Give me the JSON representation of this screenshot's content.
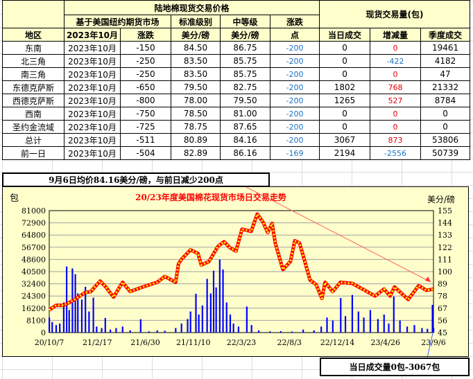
{
  "table": {
    "title": "陆地棉现货交易价格",
    "futures_header": "基于美国纽约期货市场",
    "std_grade": "标准级别",
    "mid_grade": "中等级",
    "change_header": "涨跌",
    "volume_header": "现货交易量(包)",
    "sub": {
      "region": "地区",
      "month": "2023年10月",
      "change": "涨跌",
      "unit1": "美分/磅",
      "unit2": "美分/磅",
      "points": "点",
      "today": "当日成交",
      "delta": "增减量",
      "season": "季度成交"
    },
    "rows": [
      {
        "region": "东南",
        "month": "2023年10月",
        "basis": "-150",
        "std": "84.50",
        "mid": "86.75",
        "chg": "-200",
        "today": "0",
        "delta": "0",
        "season": "19461",
        "delta_color": "red"
      },
      {
        "region": "北三角",
        "month": "2023年10月",
        "basis": "-250",
        "std": "83.50",
        "mid": "85.75",
        "chg": "-200",
        "today": "0",
        "delta": "-422",
        "season": "4182",
        "delta_color": "blue"
      },
      {
        "region": "南三角",
        "month": "2023年10月",
        "basis": "-250",
        "std": "83.50",
        "mid": "85.75",
        "chg": "-200",
        "today": "0",
        "delta": "0",
        "season": "47",
        "delta_color": "red"
      },
      {
        "region": "东德克萨斯",
        "month": "2023年10月",
        "basis": "-650",
        "std": "79.50",
        "mid": "82.75",
        "chg": "-200",
        "today": "1802",
        "delta": "768",
        "season": "21332",
        "delta_color": "red"
      },
      {
        "region": "西德克萨斯",
        "month": "2023年10月",
        "basis": "-800",
        "std": "78.00",
        "mid": "79.50",
        "chg": "-200",
        "today": "1265",
        "delta": "527",
        "season": "8784",
        "delta_color": "red"
      },
      {
        "region": "西南",
        "month": "2023年10月",
        "basis": "-750",
        "std": "78.50",
        "mid": "81.00",
        "chg": "-200",
        "today": "0",
        "delta": "0",
        "season": "0",
        "delta_color": "red"
      },
      {
        "region": "圣约金流域",
        "month": "2023年10月",
        "basis": "-725",
        "std": "78.75",
        "mid": "87.65",
        "chg": "-200",
        "today": "0",
        "delta": "0",
        "season": "0",
        "delta_color": "red"
      },
      {
        "region": "总计",
        "month": "2023年10月",
        "basis": "-511",
        "std": "80.89",
        "mid": "84.16",
        "chg": "-200",
        "today": "3067",
        "delta": "873",
        "season": "53806",
        "delta_color": "red"
      },
      {
        "region": "前一日",
        "month": "2023年10月",
        "basis": "-504",
        "std": "82.89",
        "mid": "86.16",
        "chg": "-169",
        "today": "2194",
        "delta": "-2556",
        "season": "50739",
        "delta_color": "blue"
      }
    ]
  },
  "caption_top": "9月6日均价84.16美分/磅，与前日减少200点",
  "caption_bottom": "当日成交量0包-3067包",
  "colors": {
    "header_bg": "#ffffcc",
    "price_line": "#ff0000",
    "price_dots": "#ffff00",
    "volume_bars": "#0000ff",
    "title": "#ff0000",
    "negative": "#1a6fc4"
  },
  "chart_data": {
    "type": "bar+line",
    "title": "20/23年度美国棉花现货市场日交易走势",
    "ylabel_left": "包",
    "ylabel_right": "美分/磅",
    "ylim_left": [
      0,
      81000
    ],
    "yticks_left": [
      "0",
      "8100",
      "16200",
      "24300",
      "32400",
      "40500",
      "48600",
      "56700",
      "64800",
      "72900",
      "81000"
    ],
    "ylim_right": [
      45,
      155
    ],
    "yticks_right": [
      "45",
      "56",
      "67",
      "78",
      "89",
      "100",
      "111",
      "122",
      "133",
      "144",
      "155"
    ],
    "xlim": [
      "2020-10-07",
      "2023-09-06"
    ],
    "xticks": [
      "20/10/7",
      "21/2/17",
      "21/6/30",
      "21/11/10",
      "22/3/23",
      "22/8/3",
      "22/12/14",
      "23/4/26",
      "23/9/6"
    ],
    "grid": "horizontal",
    "price_series": [
      [
        "2020-10-07",
        65.4
      ],
      [
        "2020-10-26",
        69.6
      ],
      [
        "2020-11-16",
        69.6
      ],
      [
        "2020-12-11",
        73.7
      ],
      [
        "2021-01-14",
        81
      ],
      [
        "2021-01-30",
        82
      ],
      [
        "2021-02-25",
        91.5
      ],
      [
        "2021-03-13",
        86
      ],
      [
        "2021-04-03",
        77
      ],
      [
        "2021-04-28",
        90.4
      ],
      [
        "2021-05-19",
        82
      ],
      [
        "2021-06-22",
        86
      ],
      [
        "2021-08-02",
        90.4
      ],
      [
        "2021-08-23",
        95.6
      ],
      [
        "2021-09-22",
        90.4
      ],
      [
        "2021-09-30",
        107
      ],
      [
        "2021-10-08",
        111
      ],
      [
        "2021-11-02",
        119.6
      ],
      [
        "2021-11-23",
        116.4
      ],
      [
        "2021-12-02",
        106
      ],
      [
        "2021-12-23",
        109
      ],
      [
        "2022-01-17",
        122.7
      ],
      [
        "2022-02-03",
        127
      ],
      [
        "2022-02-19",
        121.7
      ],
      [
        "2022-03-08",
        118.5
      ],
      [
        "2022-03-25",
        138.3
      ],
      [
        "2022-04-19",
        136.3
      ],
      [
        "2022-05-06",
        151.9
      ],
      [
        "2022-05-22",
        144.6
      ],
      [
        "2022-06-04",
        135.2
      ],
      [
        "2022-06-16",
        143.5
      ],
      [
        "2022-06-25",
        125.8
      ],
      [
        "2022-07-16",
        101.9
      ],
      [
        "2022-08-06",
        109.2
      ],
      [
        "2022-08-18",
        127.9
      ],
      [
        "2022-08-31",
        125.8
      ],
      [
        "2022-09-12",
        112.3
      ],
      [
        "2022-09-29",
        92.5
      ],
      [
        "2022-10-16",
        88.3
      ],
      [
        "2022-11-01",
        75.8
      ],
      [
        "2022-11-10",
        90.4
      ],
      [
        "2022-12-01",
        82
      ],
      [
        "2022-12-22",
        90.4
      ],
      [
        "2023-01-24",
        89.4
      ],
      [
        "2023-02-22",
        84.2
      ],
      [
        "2023-03-28",
        78
      ],
      [
        "2023-04-22",
        84.2
      ],
      [
        "2023-05-09",
        78
      ],
      [
        "2023-05-21",
        86.2
      ],
      [
        "2023-06-28",
        74.8
      ],
      [
        "2023-07-27",
        87.3
      ],
      [
        "2023-08-17",
        83.1
      ],
      [
        "2023-09-06",
        84.16
      ]
    ],
    "volume_series": [
      [
        "2020-10-07",
        10000
      ],
      [
        "2020-10-15",
        7000
      ],
      [
        "2020-10-26",
        5000
      ],
      [
        "2020-11-05",
        6000
      ],
      [
        "2020-11-16",
        20000
      ],
      [
        "2020-11-24",
        43900
      ],
      [
        "2020-12-01",
        15000
      ],
      [
        "2020-12-10",
        42600
      ],
      [
        "2020-12-18",
        38800
      ],
      [
        "2020-12-25",
        26000
      ],
      [
        "2021-01-05",
        22000
      ],
      [
        "2021-01-15",
        30400
      ],
      [
        "2021-01-25",
        14000
      ],
      [
        "2021-02-06",
        23200
      ],
      [
        "2021-02-15",
        4000
      ],
      [
        "2021-03-01",
        3000
      ],
      [
        "2021-03-11",
        9700
      ],
      [
        "2021-03-25",
        2000
      ],
      [
        "2021-04-10",
        3000
      ],
      [
        "2021-04-28",
        4000
      ],
      [
        "2021-05-19",
        1500
      ],
      [
        "2021-06-17",
        8900
      ],
      [
        "2021-07-10",
        800
      ],
      [
        "2021-08-02",
        1500
      ],
      [
        "2021-08-23",
        1200
      ],
      [
        "2021-09-22",
        3000
      ],
      [
        "2021-10-08",
        6000
      ],
      [
        "2021-10-25",
        9000
      ],
      [
        "2021-11-02",
        14000
      ],
      [
        "2021-11-17",
        25800
      ],
      [
        "2021-11-25",
        12000
      ],
      [
        "2021-12-05",
        18000
      ],
      [
        "2021-12-18",
        35700
      ],
      [
        "2021-12-28",
        26000
      ],
      [
        "2022-01-05",
        41100
      ],
      [
        "2022-01-12",
        30000
      ],
      [
        "2022-01-22",
        48500
      ],
      [
        "2022-01-31",
        41900
      ],
      [
        "2022-02-10",
        20000
      ],
      [
        "2022-02-20",
        12000
      ],
      [
        "2022-03-01",
        6000
      ],
      [
        "2022-03-15",
        4000
      ],
      [
        "2022-04-07",
        17300
      ],
      [
        "2022-04-20",
        5000
      ],
      [
        "2022-05-10",
        1500
      ],
      [
        "2022-06-10",
        800
      ],
      [
        "2022-07-10",
        1000
      ],
      [
        "2022-08-10",
        700
      ],
      [
        "2022-09-10",
        2000
      ],
      [
        "2022-10-10",
        1500
      ],
      [
        "2022-10-30",
        4000
      ],
      [
        "2022-11-15",
        10000
      ],
      [
        "2022-12-01",
        8000
      ],
      [
        "2022-12-23",
        23000
      ],
      [
        "2023-01-05",
        11000
      ],
      [
        "2023-01-24",
        25000
      ],
      [
        "2023-02-10",
        14000
      ],
      [
        "2023-02-25",
        10000
      ],
      [
        "2023-03-15",
        15000
      ],
      [
        "2023-04-05",
        9000
      ],
      [
        "2023-04-22",
        12000
      ],
      [
        "2023-05-05",
        6000
      ],
      [
        "2023-05-19",
        23900
      ],
      [
        "2023-06-05",
        8000
      ],
      [
        "2023-06-25",
        4000
      ],
      [
        "2023-07-15",
        5000
      ],
      [
        "2023-08-05",
        3000
      ],
      [
        "2023-08-20",
        2500
      ],
      [
        "2023-09-03",
        18400
      ],
      [
        "2023-09-06",
        3067
      ]
    ]
  }
}
